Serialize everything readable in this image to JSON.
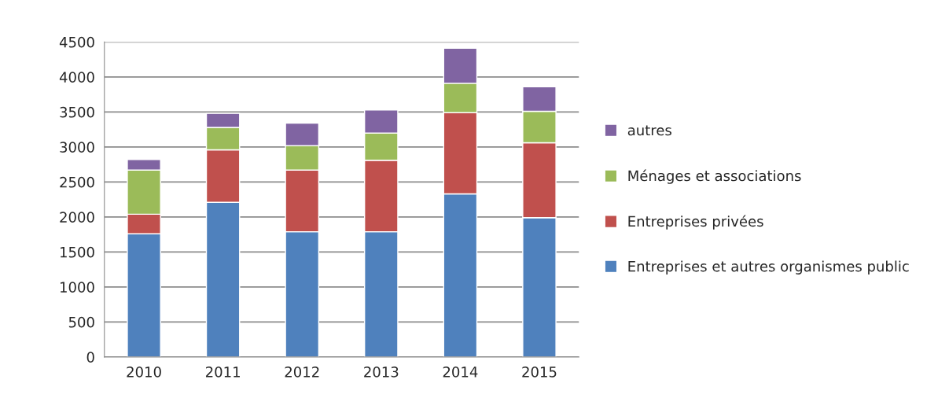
{
  "chart_data": {
    "type": "bar",
    "stacked": true,
    "categories": [
      "2010",
      "2011",
      "2012",
      "2013",
      "2014",
      "2015"
    ],
    "series": [
      {
        "name": "Entreprises et autres organismes public",
        "color": "#4f81bd",
        "values": [
          1760,
          2210,
          1790,
          1790,
          2330,
          1990
        ]
      },
      {
        "name": "Entreprises privées",
        "color": "#c0504d",
        "values": [
          280,
          750,
          880,
          1020,
          1160,
          1070
        ]
      },
      {
        "name": "Ménages et associations",
        "color": "#9bbb59",
        "values": [
          630,
          320,
          350,
          390,
          420,
          450
        ]
      },
      {
        "name": "autres",
        "color": "#8064a2",
        "values": [
          150,
          200,
          320,
          330,
          500,
          350
        ]
      }
    ],
    "ylim": [
      0,
      4500
    ],
    "yticks": [
      0,
      500,
      1000,
      1500,
      2000,
      2500,
      3000,
      3500,
      4000,
      4500
    ],
    "grid": "y",
    "legend": "right"
  }
}
